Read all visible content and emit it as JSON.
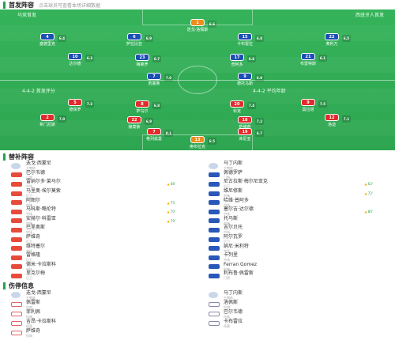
{
  "lineup_section": {
    "title": "首发阵容",
    "subtitle": "点击球员可查看本场详细数据"
  },
  "home_team": {
    "name": "马竞首发",
    "formation": "4-4-2",
    "coach_label": "首发评分"
  },
  "away_team": {
    "name": "西班牙人首发",
    "formation": "4-4-2",
    "coach_label": "平均年龄"
  },
  "home_players": [
    {
      "number": "13",
      "name": "奥布拉克",
      "rating": "6.5"
    },
    {
      "number": "2",
      "name": "希门尼斯",
      "rating": "7.0"
    },
    {
      "number": "22",
      "name": "赫莫索",
      "rating": "6.9"
    },
    {
      "number": "18",
      "name": "萨维奇",
      "rating": "7.2"
    },
    {
      "number": "12",
      "name": "洛迪",
      "rating": "7.1"
    },
    {
      "number": "5",
      "name": "德保罗",
      "rating": "7.3"
    },
    {
      "number": "8",
      "name": "萨乌尔",
      "rating": "6.8"
    },
    {
      "number": "20",
      "name": "科克",
      "rating": "7.4"
    },
    {
      "number": "9",
      "name": "莫拉塔",
      "rating": "7.5"
    },
    {
      "number": "7",
      "name": "格列兹曼",
      "rating": "8.1"
    },
    {
      "number": "19",
      "name": "库尼亚",
      "rating": "6.7"
    }
  ],
  "away_players": [
    {
      "number": "1",
      "name": "迭戈·洛佩斯",
      "rating": "6.6"
    },
    {
      "number": "4",
      "name": "塞德里克",
      "rating": "6.4"
    },
    {
      "number": "6",
      "name": "萨拉比亚",
      "rating": "6.9"
    },
    {
      "number": "15",
      "name": "卡布雷拉",
      "rating": "6.8"
    },
    {
      "number": "22",
      "name": "奥利万",
      "rating": "6.5"
    },
    {
      "number": "10",
      "name": "达尔德",
      "rating": "6.3"
    },
    {
      "number": "23",
      "name": "梅莱罗",
      "rating": "6.7"
    },
    {
      "number": "17",
      "name": "普阿多",
      "rating": "6.6"
    },
    {
      "number": "21",
      "name": "布雷特斯",
      "rating": "6.1"
    },
    {
      "number": "7",
      "name": "若塞鲁",
      "rating": "7.0"
    },
    {
      "number": "9",
      "name": "德托马斯",
      "rating": "6.9"
    }
  ],
  "subs_section": {
    "title": "替补阵容"
  },
  "home_subs": [
    {
      "name": "迭戈·西蒙尼",
      "pos": "主教练",
      "in": ""
    },
    {
      "name": "巴尔韦德",
      "pos": "门将",
      "in": ""
    },
    {
      "name": "雷纳尔多·莱马尔",
      "pos": "中场",
      "in": "68'"
    },
    {
      "name": "马里奥·埃尔莫索",
      "pos": "后卫",
      "in": ""
    },
    {
      "name": "阿图尔",
      "pos": "前锋",
      "in": "75'"
    },
    {
      "name": "马科斯·略伦特",
      "pos": "中场",
      "in": "70'"
    },
    {
      "name": "安赫尔·科雷亚",
      "pos": "前锋",
      "in": "79'"
    },
    {
      "name": "巴里奥斯",
      "pos": "中场",
      "in": ""
    },
    {
      "name": "萨维奇",
      "pos": "后卫",
      "in": ""
    },
    {
      "name": "维特塞尔",
      "pos": "中场",
      "in": ""
    },
    {
      "name": "雷格隆",
      "pos": "后卫",
      "in": ""
    },
    {
      "name": "德米·卡拉斯科",
      "pos": "中场",
      "in": ""
    },
    {
      "name": "里克尔梅",
      "pos": "后卫",
      "in": ""
    }
  ],
  "away_subs": [
    {
      "name": "马丁内斯",
      "pos": "主教练",
      "in": ""
    },
    {
      "name": "佩德罗萨",
      "pos": "门将",
      "in": ""
    },
    {
      "name": "尼古拉斯·梅尔尼亚克",
      "pos": "后卫",
      "in": "63'"
    },
    {
      "name": "维尼修斯",
      "pos": "前锋",
      "in": "72'"
    },
    {
      "name": "哈维·普阿多",
      "pos": "中场",
      "in": ""
    },
    {
      "name": "塞尔吉·达尔德",
      "pos": "中场",
      "in": "80'"
    },
    {
      "name": "托马斯",
      "pos": "前锋",
      "in": ""
    },
    {
      "name": "吉尔贝托",
      "pos": "中场",
      "in": ""
    },
    {
      "name": "阿尔瓦罗",
      "pos": "后卫",
      "in": ""
    },
    {
      "name": "纳尼·米利特",
      "pos": "中场",
      "in": ""
    },
    {
      "name": "卡列里",
      "pos": "中场",
      "in": ""
    },
    {
      "name": "Ferran Gomez",
      "pos": "前锋",
      "in": ""
    },
    {
      "name": "利布鲁·佩雷斯",
      "pos": "门将",
      "in": ""
    }
  ],
  "injury_section": {
    "title": "伤停信息"
  },
  "home_injuries": [
    {
      "name": "迭戈·西蒙尼",
      "pos": "主教练"
    },
    {
      "name": "佩雷斯",
      "pos": "伤病"
    },
    {
      "name": "菲利佩",
      "pos": "伤病"
    },
    {
      "name": "吉昂·卡拉斯科",
      "pos": "停赛"
    },
    {
      "name": "萨维奇",
      "pos": "伤病"
    }
  ],
  "away_injuries": [
    {
      "name": "马丁内斯",
      "pos": "主教练"
    },
    {
      "name": "洛佩斯",
      "pos": "伤病"
    },
    {
      "name": "巴尔韦德",
      "pos": "伤病"
    },
    {
      "name": "卡布雷拉",
      "pos": "停赛"
    }
  ]
}
